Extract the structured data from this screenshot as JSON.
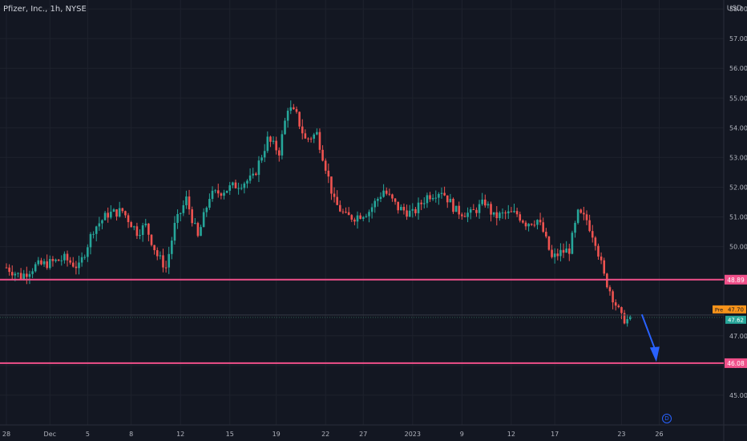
{
  "header": {
    "title": "Pfizer, Inc., 1h, NYSE",
    "currency": "USD"
  },
  "colors": {
    "background": "#131722",
    "grid": "#1e222d",
    "up": "#26a69a",
    "down": "#ef5350",
    "level": "#f0508a",
    "arrow": "#2962ff",
    "pre_label": "#f7931a",
    "last_label": "#26a69a"
  },
  "chart_data": {
    "type": "candlestick",
    "title": "Pfizer, Inc., 1h, NYSE",
    "ylabel": "USD",
    "ylim": [
      44.0,
      58.3
    ],
    "y_ticks": [
      "58.00",
      "57.00",
      "56.00",
      "55.00",
      "54.00",
      "53.00",
      "52.00",
      "51.00",
      "50.00",
      "47.00",
      "46.00",
      "45.00"
    ],
    "x_ticks": [
      "28",
      "Dec",
      "5",
      "8",
      "12",
      "15",
      "19",
      "22",
      "27",
      "2023",
      "9",
      "12",
      "17",
      "23",
      "26"
    ],
    "x_tick_index": [
      0,
      15,
      28,
      43,
      60,
      77,
      93,
      110,
      123,
      140,
      157,
      174,
      189,
      212,
      225
    ],
    "grid": true,
    "bar_count": 250,
    "anchors": [
      [
        0,
        49.3
      ],
      [
        5,
        49.0
      ],
      [
        10,
        49.35
      ],
      [
        15,
        49.45
      ],
      [
        20,
        49.6
      ],
      [
        25,
        49.3
      ],
      [
        30,
        50.6
      ],
      [
        35,
        51.1
      ],
      [
        40,
        51.2
      ],
      [
        45,
        50.5
      ],
      [
        48,
        50.7
      ],
      [
        52,
        49.7
      ],
      [
        55,
        49.3
      ],
      [
        58,
        50.7
      ],
      [
        62,
        51.6
      ],
      [
        66,
        50.3
      ],
      [
        70,
        51.7
      ],
      [
        75,
        51.9
      ],
      [
        80,
        52.1
      ],
      [
        85,
        52.3
      ],
      [
        90,
        53.6
      ],
      [
        94,
        53.2
      ],
      [
        97,
        54.7
      ],
      [
        100,
        54.4
      ],
      [
        103,
        53.6
      ],
      [
        107,
        53.8
      ],
      [
        110,
        52.7
      ],
      [
        113,
        51.5
      ],
      [
        117,
        51.0
      ],
      [
        120,
        51.0
      ],
      [
        125,
        51.2
      ],
      [
        130,
        51.9
      ],
      [
        135,
        51.3
      ],
      [
        140,
        51.1
      ],
      [
        145,
        51.7
      ],
      [
        150,
        51.9
      ],
      [
        155,
        51.2
      ],
      [
        160,
        51.1
      ],
      [
        165,
        51.5
      ],
      [
        168,
        51.0
      ],
      [
        172,
        51.1
      ],
      [
        176,
        51.1
      ],
      [
        179,
        50.8
      ],
      [
        183,
        50.9
      ],
      [
        185,
        50.5
      ],
      [
        188,
        49.6
      ],
      [
        191,
        49.8
      ],
      [
        194,
        49.9
      ],
      [
        197,
        51.1
      ],
      [
        200,
        50.9
      ],
      [
        203,
        50.2
      ],
      [
        206,
        49.0
      ],
      [
        209,
        48.3
      ],
      [
        212,
        47.6
      ],
      [
        215,
        47.5
      ]
    ],
    "levels": [
      {
        "label": "48.89",
        "value": 48.89
      },
      {
        "label": "46.08",
        "value": 46.08
      }
    ],
    "price_labels": [
      {
        "label": "Pre",
        "value": "47.70",
        "y": 47.7
      },
      {
        "label": "",
        "value": "47.62",
        "y": 47.62
      }
    ],
    "annotation": {
      "type": "arrow",
      "from_index": 219,
      "from_y": 47.72,
      "to_index": 224,
      "to_y": 46.12
    },
    "event_marker": "D"
  }
}
